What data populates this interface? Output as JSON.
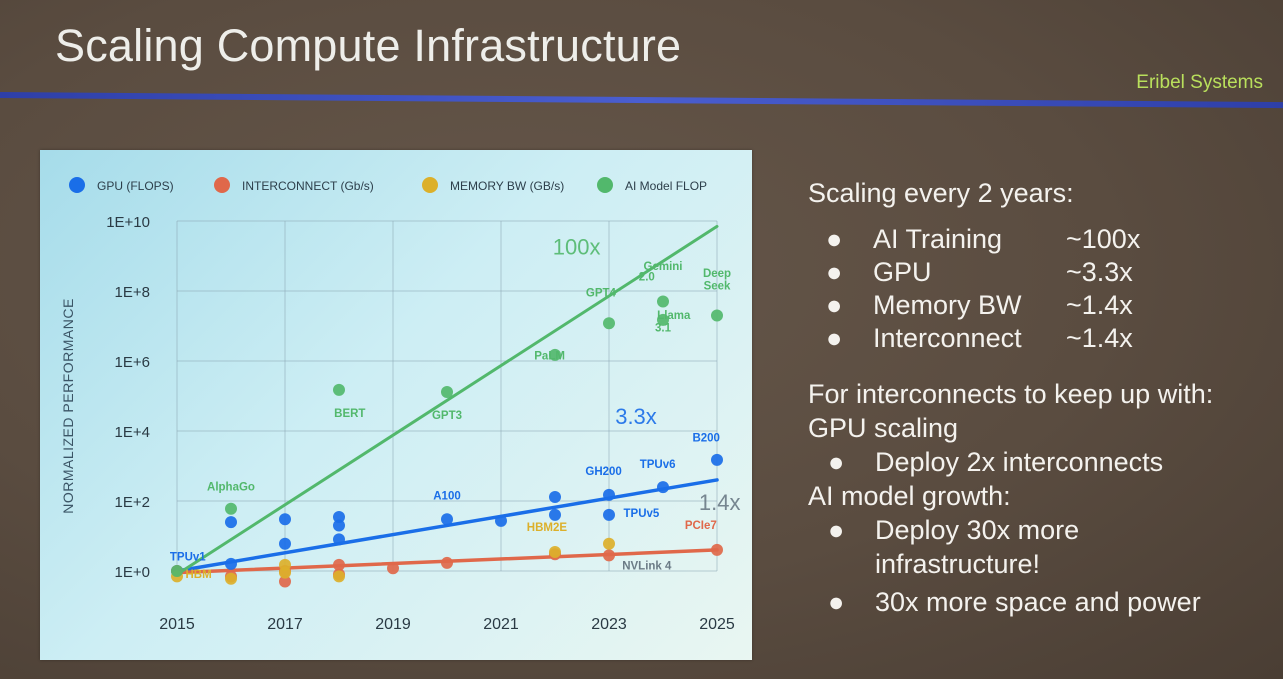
{
  "slide": {
    "title": "Scaling Compute Infrastructure",
    "brand": "Eribel Systems"
  },
  "colors": {
    "gpu": "#1a6ee8",
    "interconnect": "#e0684a",
    "memory": "#dcb02a",
    "ai": "#52b86c"
  },
  "chart_data": {
    "type": "scatter",
    "ylabel": "NORMALIZED PERFORMANCE",
    "log_scale_y": true,
    "y_ticks": [
      {
        "value": 1,
        "label": "1E+0"
      },
      {
        "value": 100,
        "label": "1E+2"
      },
      {
        "value": 10000,
        "label": "1E+4"
      },
      {
        "value": 1000000,
        "label": "1E+6"
      },
      {
        "value": 100000000,
        "label": "1E+8"
      },
      {
        "value": 10000000000,
        "label": "1E+10"
      }
    ],
    "x_ticks": [
      2015,
      2017,
      2019,
      2021,
      2023,
      2025
    ],
    "xlim": [
      2015,
      2025
    ],
    "ylim_exp": [
      0,
      10
    ],
    "grid": true,
    "legend_position": "top",
    "series": [
      {
        "key": "gpu",
        "name": "GPU (FLOPS)",
        "points": [
          [
            2015,
            1
          ],
          [
            2016,
            1.6
          ],
          [
            2016,
            25
          ],
          [
            2017,
            6
          ],
          [
            2017,
            30
          ],
          [
            2018,
            8
          ],
          [
            2018,
            20
          ],
          [
            2018,
            35
          ],
          [
            2020,
            30
          ],
          [
            2021,
            27
          ],
          [
            2022,
            40
          ],
          [
            2022,
            130
          ],
          [
            2023,
            40
          ],
          [
            2023,
            150
          ],
          [
            2024,
            250
          ],
          [
            2025,
            1500
          ]
        ],
        "trend": [
          [
            2015,
            1
          ],
          [
            2025,
            400
          ]
        ]
      },
      {
        "key": "interconnect",
        "name": "INTERCONNECT (Gb/s)",
        "points": [
          [
            2015,
            1
          ],
          [
            2016,
            0.7
          ],
          [
            2017,
            0.5
          ],
          [
            2017,
            1
          ],
          [
            2018,
            0.8
          ],
          [
            2018,
            1.5
          ],
          [
            2019,
            1.2
          ],
          [
            2020,
            1.7
          ],
          [
            2022,
            3
          ],
          [
            2023,
            2.8
          ],
          [
            2025,
            4
          ]
        ],
        "trend": [
          [
            2015,
            0.9
          ],
          [
            2025,
            4
          ]
        ]
      },
      {
        "key": "memory",
        "name": "MEMORY BW (GB/s)",
        "points": [
          [
            2015,
            0.7
          ],
          [
            2016,
            0.6
          ],
          [
            2017,
            0.9
          ],
          [
            2017,
            1.5
          ],
          [
            2018,
            0.7
          ],
          [
            2022,
            3.5
          ],
          [
            2023,
            6
          ]
        ]
      },
      {
        "key": "ai",
        "name": "AI Model FLOP",
        "points": [
          [
            2015,
            1
          ],
          [
            2016,
            60
          ],
          [
            2018,
            150000
          ],
          [
            2020,
            130000
          ],
          [
            2022,
            1500000
          ],
          [
            2023,
            12000000
          ],
          [
            2024,
            15000000
          ],
          [
            2024,
            50000000
          ],
          [
            2025,
            20000000
          ]
        ],
        "trend": [
          [
            2015,
            0.8
          ],
          [
            2025,
            7000000000
          ]
        ]
      }
    ],
    "annotations": [
      {
        "text": "TPUv1",
        "x": 2015.2,
        "exp": 0.3,
        "color": "gpu"
      },
      {
        "text": "HBM",
        "x": 2015.4,
        "exp": -0.2,
        "color": "memory"
      },
      {
        "text": "AlphaGo",
        "x": 2016,
        "exp": 2.3,
        "color": "ai"
      },
      {
        "text": "BERT",
        "x": 2018.2,
        "exp": 4.4,
        "color": "ai"
      },
      {
        "text": "GPT3",
        "x": 2020,
        "exp": 4.35,
        "color": "ai"
      },
      {
        "text": "A100",
        "x": 2020,
        "exp": 2.05,
        "color": "gpu"
      },
      {
        "text": "PaLM",
        "x": 2021.9,
        "exp": 6.05,
        "color": "ai"
      },
      {
        "text": "GPT4",
        "x": 2022.85,
        "exp": 7.85,
        "color": "ai"
      },
      {
        "text": "Gemini",
        "x": 2024,
        "exp": 8.6,
        "color": "ai"
      },
      {
        "text": "2.0",
        "x": 2023.7,
        "exp": 8.3,
        "color": "ai"
      },
      {
        "text": "Deep",
        "x": 2025,
        "exp": 8.4,
        "color": "ai"
      },
      {
        "text": "Seek",
        "x": 2025,
        "exp": 8.05,
        "color": "ai"
      },
      {
        "text": "Llama",
        "x": 2024.2,
        "exp": 7.2,
        "color": "ai"
      },
      {
        "text": "3.1",
        "x": 2024,
        "exp": 6.85,
        "color": "ai"
      },
      {
        "text": "100x",
        "x": 2022.4,
        "exp": 9.05,
        "color": "ai",
        "big": true
      },
      {
        "text": "3.3x",
        "x": 2023.5,
        "exp": 4.2,
        "color": "gpu",
        "big": true
      },
      {
        "text": "1.4x",
        "x": 2025.05,
        "exp": 1.75,
        "color": "gray",
        "big": true
      },
      {
        "text": "B200",
        "x": 2024.8,
        "exp": 3.7,
        "color": "gpu"
      },
      {
        "text": "GH200",
        "x": 2022.9,
        "exp": 2.75,
        "color": "gpu"
      },
      {
        "text": "TPUv6",
        "x": 2023.9,
        "exp": 2.95,
        "color": "gpu"
      },
      {
        "text": "TPUv5",
        "x": 2023.6,
        "exp": 1.55,
        "color": "gpu"
      },
      {
        "text": "HBM2E",
        "x": 2021.85,
        "exp": 1.15,
        "color": "memory"
      },
      {
        "text": "PCIe7",
        "x": 2024.7,
        "exp": 1.2,
        "color": "interconnect"
      },
      {
        "text": "NVLink 4",
        "x": 2023.7,
        "exp": 0.05,
        "color": "gray"
      }
    ]
  },
  "right_panel": {
    "heading": "Scaling every 2 years:",
    "bullet": "●",
    "scaling": [
      {
        "label": "AI Training",
        "value": "~100x"
      },
      {
        "label": "GPU",
        "value": "~3.3x"
      },
      {
        "label": "Memory BW",
        "value": "~1.4x"
      },
      {
        "label": "Interconnect",
        "value": "~1.4x"
      }
    ],
    "interconnect_heading_1": "For interconnects to keep up with:",
    "interconnect_heading_2": "GPU scaling",
    "interconnect_bullet": "Deploy 2x interconnects",
    "ai_heading": "AI model growth:",
    "ai_bullet_1_line1": "Deploy 30x more",
    "ai_bullet_1_line2": "infrastructure!",
    "ai_bullet_2": "30x more space and power"
  }
}
